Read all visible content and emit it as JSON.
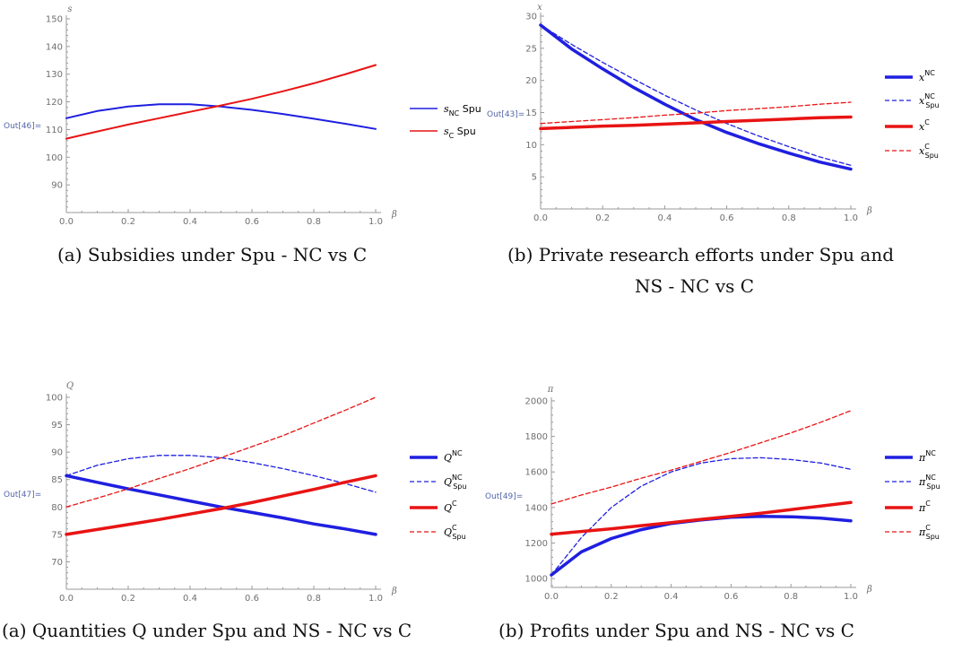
{
  "captions": {
    "a1": "(a) Subsidies under Spu - NC vs C",
    "b1_line1": "(b) Private research efforts under Spu and",
    "b1_line2": "NS - NC vs C",
    "a2": "(a) Quantities Q under Spu and NS - NC vs C",
    "b2": "(b) Profits under Spu and NS - NC vs C"
  },
  "chart_data": [
    {
      "id": "subsidies",
      "type": "line",
      "out_label": "Out[46]=",
      "ylabel": "s",
      "xlabel": "β",
      "xlim": [
        0,
        1
      ],
      "ylim": [
        80,
        150
      ],
      "xticks": [
        "0.0",
        "0.2",
        "0.4",
        "0.6",
        "0.8",
        "1.0"
      ],
      "yticks": [
        90,
        100,
        110,
        120,
        130,
        140,
        150
      ],
      "x": [
        0,
        0.1,
        0.2,
        0.3,
        0.4,
        0.5,
        0.6,
        0.7,
        0.8,
        0.9,
        1.0
      ],
      "series": [
        {
          "name": "sNC Spu",
          "base": "s",
          "sub": "NC",
          "sup": "",
          "suffix": " Spu",
          "color": "#1f1fe0",
          "width": 2,
          "dash": "",
          "values": [
            114.1,
            116.7,
            118.3,
            119.1,
            119.1,
            118.3,
            117.1,
            115.6,
            113.9,
            112.1,
            110.2
          ]
        },
        {
          "name": "sC Spu",
          "base": "s",
          "sub": "C",
          "sup": "",
          "suffix": " Spu",
          "color": "#e81414",
          "width": 2,
          "dash": "",
          "values": [
            106.7,
            109.3,
            111.8,
            114.1,
            116.4,
            118.7,
            121.1,
            123.8,
            126.7,
            129.9,
            133.3
          ]
        }
      ]
    },
    {
      "id": "research",
      "type": "line",
      "out_label": "Out[43]=",
      "ylabel": "x",
      "xlabel": "β",
      "xlim": [
        0,
        1
      ],
      "ylim": [
        0,
        30
      ],
      "xticks": [
        "0.0",
        "0.2",
        "0.4",
        "0.6",
        "0.8",
        "1.0"
      ],
      "yticks": [
        5,
        10,
        15,
        20,
        25,
        30
      ],
      "x": [
        0,
        0.1,
        0.2,
        0.3,
        0.4,
        0.5,
        0.6,
        0.7,
        0.8,
        0.9,
        1.0
      ],
      "series": [
        {
          "name": "xNC",
          "base": "x",
          "sub": "",
          "sup": "NC",
          "suffix": "",
          "color": "#1f1fe0",
          "width": 3.5,
          "dash": "",
          "values": [
            28.6,
            24.9,
            21.8,
            18.9,
            16.3,
            13.9,
            11.9,
            10.2,
            8.7,
            7.3,
            6.2
          ]
        },
        {
          "name": "xNC Spu",
          "base": "x",
          "sub": "Spu",
          "sup": "NC",
          "suffix": "",
          "color": "#1f1fe0",
          "width": 1.3,
          "dash": "5,3",
          "values": [
            28.6,
            25.6,
            22.8,
            20.2,
            17.7,
            15.4,
            13.3,
            11.4,
            9.7,
            8.1,
            6.8
          ]
        },
        {
          "name": "xC",
          "base": "x",
          "sub": "",
          "sup": "C",
          "suffix": "",
          "color": "#e81414",
          "width": 3.5,
          "dash": "",
          "values": [
            12.5,
            12.7,
            12.9,
            13.0,
            13.2,
            13.4,
            13.6,
            13.8,
            14.0,
            14.2,
            14.3
          ]
        },
        {
          "name": "xC Spu",
          "base": "x",
          "sub": "Spu",
          "sup": "C",
          "suffix": "",
          "color": "#e81414",
          "width": 1.3,
          "dash": "5,3",
          "values": [
            13.3,
            13.6,
            13.9,
            14.2,
            14.6,
            14.9,
            15.3,
            15.6,
            15.9,
            16.3,
            16.6
          ]
        }
      ]
    },
    {
      "id": "quantities",
      "type": "line",
      "out_label": "Out[47]=",
      "ylabel": "Q",
      "xlabel": "β",
      "xlim": [
        0,
        1
      ],
      "ylim": [
        65,
        100
      ],
      "xticks": [
        "0.0",
        "0.2",
        "0.4",
        "0.6",
        "0.8",
        "1.0"
      ],
      "yticks": [
        70,
        75,
        80,
        85,
        90,
        95,
        100
      ],
      "x": [
        0,
        0.1,
        0.2,
        0.3,
        0.4,
        0.5,
        0.6,
        0.7,
        0.8,
        0.9,
        1.0
      ],
      "series": [
        {
          "name": "QNC",
          "base": "Q",
          "sub": "",
          "sup": "NC",
          "suffix": "",
          "color": "#1f1fe0",
          "width": 3.5,
          "dash": "",
          "values": [
            85.7,
            84.5,
            83.3,
            82.2,
            81.1,
            80.0,
            79.0,
            78.0,
            76.9,
            76.0,
            75.0
          ]
        },
        {
          "name": "QNC Spu",
          "base": "Q",
          "sub": "Spu",
          "sup": "NC",
          "suffix": "",
          "color": "#1f1fe0",
          "width": 1.3,
          "dash": "5,3",
          "values": [
            85.7,
            87.6,
            88.8,
            89.4,
            89.4,
            89.0,
            88.1,
            87.0,
            85.7,
            84.3,
            82.7
          ]
        },
        {
          "name": "QC",
          "base": "Q",
          "sub": "",
          "sup": "C",
          "suffix": "",
          "color": "#e81414",
          "width": 3.5,
          "dash": "",
          "values": [
            75.0,
            75.9,
            76.8,
            77.7,
            78.7,
            79.7,
            80.8,
            82.0,
            83.2,
            84.5,
            85.7
          ]
        },
        {
          "name": "QC Spu",
          "base": "Q",
          "sub": "Spu",
          "sup": "C",
          "suffix": "",
          "color": "#e81414",
          "width": 1.3,
          "dash": "5,3",
          "values": [
            80.0,
            81.6,
            83.3,
            85.2,
            87.0,
            89.0,
            91.0,
            93.0,
            95.3,
            97.6,
            100.0
          ]
        }
      ]
    },
    {
      "id": "profits",
      "type": "line",
      "out_label": "Out[49]=",
      "ylabel": "π",
      "xlabel": "β",
      "xlim": [
        0,
        1
      ],
      "ylim": [
        950,
        2000
      ],
      "xticks": [
        "0.0",
        "0.2",
        "0.4",
        "0.6",
        "0.8",
        "1.0"
      ],
      "yticks": [
        1000,
        1200,
        1400,
        1600,
        1800,
        2000
      ],
      "x": [
        0,
        0.1,
        0.2,
        0.3,
        0.4,
        0.5,
        0.6,
        0.7,
        0.8,
        0.9,
        1.0
      ],
      "series": [
        {
          "name": "πNC",
          "base": "π",
          "sub": "",
          "sup": "NC",
          "suffix": "",
          "color": "#1f1fe0",
          "width": 3.5,
          "dash": "",
          "values": [
            1020,
            1150,
            1225,
            1275,
            1310,
            1330,
            1345,
            1350,
            1348,
            1340,
            1325
          ]
        },
        {
          "name": "πNC Spu",
          "base": "π",
          "sub": "Spu",
          "sup": "NC",
          "suffix": "",
          "color": "#1f1fe0",
          "width": 1.3,
          "dash": "5,3",
          "values": [
            1020,
            1230,
            1400,
            1520,
            1600,
            1650,
            1675,
            1680,
            1670,
            1650,
            1615
          ]
        },
        {
          "name": "πC",
          "base": "π",
          "sub": "",
          "sup": "C",
          "suffix": "",
          "color": "#e81414",
          "width": 3.5,
          "dash": "",
          "values": [
            1250,
            1265,
            1280,
            1298,
            1315,
            1333,
            1350,
            1368,
            1388,
            1408,
            1428
          ]
        },
        {
          "name": "πC Spu",
          "base": "π",
          "sub": "Spu",
          "sup": "C",
          "suffix": "",
          "color": "#e81414",
          "width": 1.3,
          "dash": "5,3",
          "values": [
            1420,
            1470,
            1515,
            1565,
            1610,
            1660,
            1710,
            1765,
            1820,
            1880,
            1945
          ]
        }
      ]
    }
  ]
}
